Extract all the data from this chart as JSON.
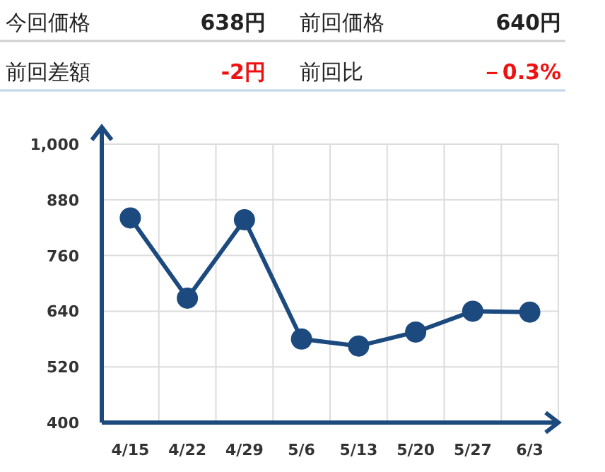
{
  "chart_data": {
    "type": "line",
    "annotations": [
      "今回価格",
      "638円",
      "前回価格",
      "640円",
      "前回差額",
      "-2円",
      "前回比",
      "－0.3%"
    ],
    "categories": [
      "4/15",
      "4/22",
      "4/29",
      "5/6",
      "5/13",
      "5/20",
      "5/27",
      "6/3"
    ],
    "series": [
      {
        "color": "#1c4a7e",
        "values": [
          841,
          668,
          837,
          580,
          565,
          595,
          640,
          638
        ]
      }
    ],
    "ylim": [
      400,
      1000
    ],
    "yticks": [
      400,
      520,
      640,
      760,
      880,
      {
        "value": 1000,
        "label": "1,000"
      }
    ],
    "grid": true,
    "marker": "circle",
    "line_style": "solid"
  }
}
